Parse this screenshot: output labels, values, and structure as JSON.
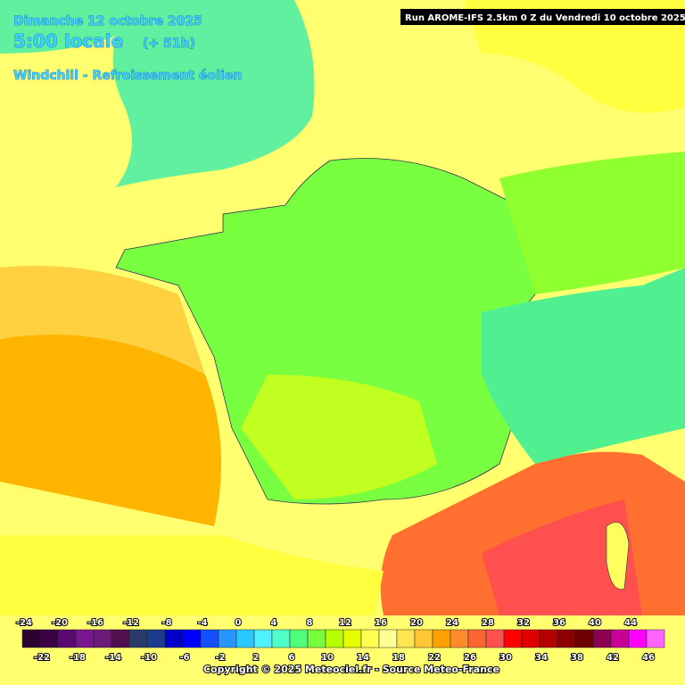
{
  "header": {
    "date": "Dimanche 12 octobre 2025",
    "time": "5:00 locale",
    "lead": "(+ 51h)",
    "parameter": "Windchill - Refroissement éolien",
    "run": "Run AROME-IFS 2.5km 0 Z du Vendredi 10 octobre 2025"
  },
  "legend": {
    "ticks": [
      -24,
      -22,
      -20,
      -18,
      -16,
      -14,
      -12,
      -10,
      -8,
      -6,
      -4,
      -2,
      0,
      2,
      4,
      6,
      8,
      10,
      12,
      14,
      16,
      18,
      20,
      22,
      24,
      26,
      28,
      30,
      32,
      34,
      36,
      38,
      40,
      42,
      44,
      46
    ],
    "colors": [
      "#2a0030",
      "#3c0046",
      "#5a0a6e",
      "#7a1690",
      "#6b1a7a",
      "#501050",
      "#2a3a6a",
      "#1e3c8c",
      "#0000c8",
      "#0000ff",
      "#1450ff",
      "#2896ff",
      "#28c8ff",
      "#50f0ff",
      "#50ffc8",
      "#50ff78",
      "#78ff3c",
      "#b4ff00",
      "#e6ff00",
      "#ffff50",
      "#ffff96",
      "#ffe650",
      "#ffc832",
      "#ffa000",
      "#ff8c28",
      "#ff6432",
      "#ff5050",
      "#ff0000",
      "#e00000",
      "#b40000",
      "#8c0000",
      "#6e0000",
      "#8c0050",
      "#c80096",
      "#ff00ff",
      "#ff64ff"
    ]
  },
  "footer": {
    "copyright": "Copyright © 2025 Meteociel.fr - Source Meteo-France"
  }
}
